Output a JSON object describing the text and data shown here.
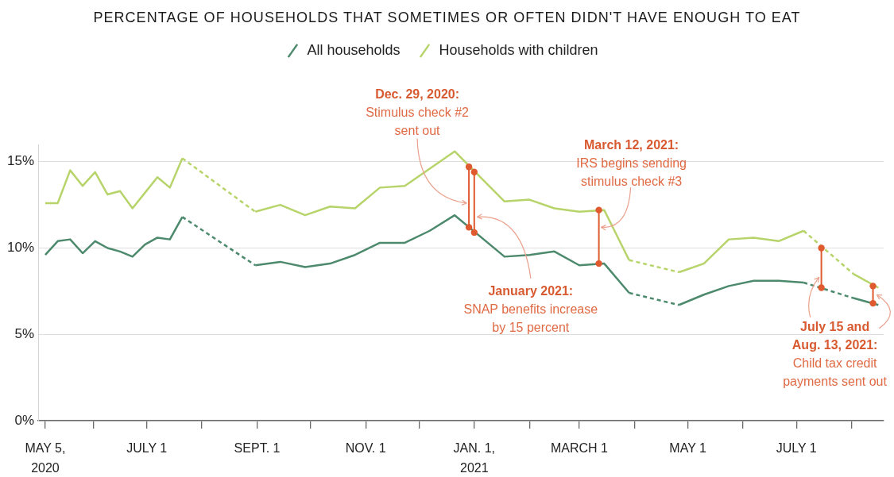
{
  "chart_data": {
    "type": "line",
    "title": "PERCENTAGE OF HOUSEHOLDS THAT SOMETIMES OR OFTEN DIDN'T HAVE ENOUGH TO EAT",
    "xlim": [
      "2020-05-01",
      "2021-08-19"
    ],
    "xticks": [
      {
        "value": "2020-05-05",
        "label": "MAY 5,\n2020"
      },
      {
        "value": "2020-06-01",
        "label": null
      },
      {
        "value": "2020-07-01",
        "label": "JULY 1"
      },
      {
        "value": "2020-08-01",
        "label": null
      },
      {
        "value": "2020-09-01",
        "label": "SEPT. 1"
      },
      {
        "value": "2020-10-01",
        "label": null
      },
      {
        "value": "2020-11-01",
        "label": "NOV. 1"
      },
      {
        "value": "2020-12-01",
        "label": null
      },
      {
        "value": "2021-01-01",
        "label": "JAN. 1,\n2021"
      },
      {
        "value": "2021-02-01",
        "label": null
      },
      {
        "value": "2021-03-01",
        "label": "MARCH 1"
      },
      {
        "value": "2021-04-01",
        "label": null
      },
      {
        "value": "2021-05-01",
        "label": "MAY 1"
      },
      {
        "value": "2021-06-01",
        "label": null
      },
      {
        "value": "2021-07-01",
        "label": "JULY 1"
      },
      {
        "value": "2021-08-01",
        "label": null
      }
    ],
    "ylim": [
      0,
      16
    ],
    "yticks": [
      {
        "value": 0,
        "label": "0%"
      },
      {
        "value": 5,
        "label": "5%"
      },
      {
        "value": 10,
        "label": "10%"
      },
      {
        "value": 15,
        "label": "15%"
      }
    ],
    "grid": "y",
    "legend": "top",
    "series": [
      {
        "name": "All households",
        "color": "#4d8a6d",
        "x": [
          "2020-05-05",
          "2020-05-12",
          "2020-05-19",
          "2020-05-26",
          "2020-06-02",
          "2020-06-09",
          "2020-06-16",
          "2020-06-23",
          "2020-06-30",
          "2020-07-07",
          "2020-07-14",
          "2020-07-21"
        ],
        "values": [
          9.6,
          10.4,
          10.5,
          9.7,
          10.4,
          10.0,
          9.8,
          9.5,
          10.2,
          10.6,
          10.5,
          11.8
        ]
      },
      {
        "color": "#4d8a6d",
        "line_style": "dashed",
        "x": [
          "2020-07-21",
          "2020-08-31"
        ],
        "values": [
          11.8,
          9.0
        ]
      },
      {
        "color": "#4d8a6d",
        "x": [
          "2020-08-31",
          "2020-09-14",
          "2020-09-28",
          "2020-10-12",
          "2020-10-26",
          "2020-11-09",
          "2020-11-23",
          "2020-12-07",
          "2020-12-21",
          "2021-01-18",
          "2021-02-01",
          "2021-02-15",
          "2021-03-01",
          "2021-03-15",
          "2021-03-29"
        ],
        "values": [
          9.0,
          9.2,
          8.9,
          9.1,
          9.6,
          10.3,
          10.3,
          11.0,
          11.9,
          9.5,
          9.6,
          9.8,
          9.0,
          9.1,
          7.4
        ]
      },
      {
        "color": "#4d8a6d",
        "line_style": "dashed",
        "x": [
          "2021-03-29",
          "2021-04-26"
        ],
        "values": [
          7.4,
          6.7
        ]
      },
      {
        "color": "#4d8a6d",
        "x": [
          "2021-04-26",
          "2021-05-10",
          "2021-05-24",
          "2021-06-07",
          "2021-06-21",
          "2021-07-05"
        ],
        "values": [
          6.7,
          7.3,
          7.8,
          8.1,
          8.1,
          8.0
        ]
      },
      {
        "color": "#4d8a6d",
        "line_style": "dashed",
        "x": [
          "2021-07-05",
          "2021-08-02"
        ],
        "values": [
          8.0,
          7.1
        ]
      },
      {
        "color": "#4d8a6d",
        "x": [
          "2021-08-02",
          "2021-08-16"
        ],
        "values": [
          7.1,
          6.7
        ]
      },
      {
        "name": "Households with children",
        "color": "#b7d46a",
        "x": [
          "2020-05-05",
          "2020-05-12",
          "2020-05-19",
          "2020-05-26",
          "2020-06-02",
          "2020-06-09",
          "2020-06-16",
          "2020-06-23",
          "2020-06-30",
          "2020-07-07",
          "2020-07-14",
          "2020-07-21"
        ],
        "values": [
          12.6,
          12.6,
          14.5,
          13.6,
          14.4,
          13.1,
          13.3,
          12.3,
          13.2,
          14.1,
          13.5,
          15.2
        ]
      },
      {
        "color": "#b7d46a",
        "line_style": "dashed",
        "x": [
          "2020-07-21",
          "2020-08-31"
        ],
        "values": [
          15.2,
          12.1
        ]
      },
      {
        "color": "#b7d46a",
        "x": [
          "2020-08-31",
          "2020-09-14",
          "2020-09-28",
          "2020-10-12",
          "2020-10-26",
          "2020-11-09",
          "2020-11-23",
          "2020-12-07",
          "2020-12-21",
          "2021-01-18",
          "2021-02-01",
          "2021-02-15",
          "2021-03-01",
          "2021-03-15",
          "2021-03-29"
        ],
        "values": [
          12.1,
          12.5,
          11.9,
          12.4,
          12.3,
          13.5,
          13.6,
          14.6,
          15.6,
          12.7,
          12.8,
          12.3,
          12.1,
          12.2,
          9.3
        ]
      },
      {
        "color": "#b7d46a",
        "line_style": "dashed",
        "x": [
          "2021-03-29",
          "2021-04-26"
        ],
        "values": [
          9.3,
          8.6
        ]
      },
      {
        "color": "#b7d46a",
        "x": [
          "2021-04-26",
          "2021-05-10",
          "2021-05-24",
          "2021-06-07",
          "2021-06-21",
          "2021-07-05"
        ],
        "values": [
          8.6,
          9.1,
          10.5,
          10.6,
          10.4,
          11.0
        ]
      },
      {
        "color": "#b7d46a",
        "line_style": "dashed",
        "x": [
          "2021-07-05",
          "2021-08-02"
        ],
        "values": [
          11.0,
          8.5
        ]
      },
      {
        "color": "#b7d46a",
        "x": [
          "2021-08-02",
          "2021-08-16"
        ],
        "values": [
          8.5,
          7.7
        ]
      },
      {
        "color": "#e05a2f",
        "marker": "circle",
        "x": [
          "2020-12-29",
          "2020-12-29"
        ],
        "values": [
          11.2,
          14.7
        ]
      },
      {
        "color": "#e05a2f",
        "marker": "circle",
        "x": [
          "2021-01-01",
          "2021-01-01"
        ],
        "values": [
          10.9,
          14.4
        ]
      },
      {
        "color": "#e05a2f",
        "marker": "circle",
        "x": [
          "2021-03-12",
          "2021-03-12"
        ],
        "values": [
          9.1,
          12.2
        ]
      },
      {
        "color": "#e05a2f",
        "marker": "circle",
        "x": [
          "2021-07-15",
          "2021-07-15"
        ],
        "values": [
          7.7,
          10.0
        ]
      },
      {
        "color": "#e05a2f",
        "marker": "circle",
        "x": [
          "2021-08-13",
          "2021-08-13"
        ],
        "values": [
          6.8,
          7.8
        ]
      }
    ],
    "annotations": [
      {
        "text": "Dec. 29, 2020:\nStimulus check #2\nsent out",
        "x": "2020-12-29",
        "y": 12.6
      },
      {
        "text": "January 2021:\nSNAP benefits increase\nby 15 percent",
        "x": "2021-01-01",
        "y": 11.8
      },
      {
        "text": "March 12, 2021:\nIRS begins sending\nstimulus check #3",
        "x": "2021-03-12",
        "y": 11.2
      },
      {
        "text": "July 15 and\nAug. 13, 2021:\nChild tax credit\npayments sent out",
        "x": "2021-07-15",
        "y": 8.3
      }
    ]
  }
}
